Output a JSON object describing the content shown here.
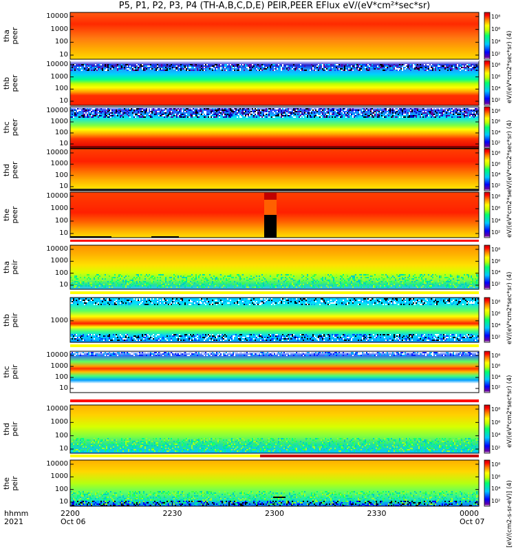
{
  "chart_data": {
    "type": "heatmap",
    "title": "P5, P1, P2, P3, P4 (TH-A,B,C,D,E) PEIR,PEER EFlux eV/(eV*cm²*sec*sr)",
    "x_axis": {
      "row_labels": [
        "hhmm",
        "2021"
      ],
      "ticks": [
        {
          "label": "2200",
          "date": "Oct 06"
        },
        {
          "label": "2230",
          "date": ""
        },
        {
          "label": "2300",
          "date": ""
        },
        {
          "label": "2330",
          "date": ""
        },
        {
          "label": "0000",
          "date": "Oct 07"
        }
      ]
    },
    "colorbar_ticks": [
      "10⁸",
      "10⁶",
      "10⁴",
      "10²"
    ],
    "colorbar_units": [
      "eV/(eV*cm2*sec*sr) (4)",
      "eV/(eV*cm2*sec*sr) (4)",
      "eV/(eV*cm2*sec*sr) (4)",
      "eV/(eV*cm2*sec*sr) (4)",
      "eV/(eV*cm2*sec*sr) (4)",
      "[eV/(cm2-s-sr-eV)] (4)"
    ],
    "panels": [
      {
        "probe": "tha",
        "instrument": "peer",
        "yticks": [
          "10000",
          "1000",
          "100",
          "10"
        ],
        "ylog": true
      },
      {
        "probe": "thb",
        "instrument": "peer",
        "yticks": [
          "10000",
          "1000",
          "100",
          "10"
        ],
        "ylog": true
      },
      {
        "probe": "thc",
        "instrument": "peer",
        "yticks": [
          "10000",
          "1000",
          "100",
          "10"
        ],
        "ylog": true
      },
      {
        "probe": "thd",
        "instrument": "peer",
        "yticks": [
          "10000",
          "1000",
          "100",
          "10"
        ],
        "ylog": true
      },
      {
        "probe": "the",
        "instrument": "peer",
        "yticks": [
          "10000",
          "1000",
          "100",
          "10"
        ],
        "ylog": true
      },
      {
        "probe": "tha",
        "instrument": "peir",
        "yticks": [
          "10000",
          "1000",
          "100",
          "10"
        ],
        "ylog": true
      },
      {
        "probe": "thb",
        "instrument": "peir",
        "yticks": [
          "1000"
        ],
        "ylog": true
      },
      {
        "probe": "thc",
        "instrument": "peir",
        "yticks": [
          "10000",
          "1000",
          "100",
          "10"
        ],
        "ylog": true
      },
      {
        "probe": "thd",
        "instrument": "peir",
        "yticks": [
          "10000",
          "1000",
          "100",
          "10"
        ],
        "ylog": true
      },
      {
        "probe": "the",
        "instrument": "peir",
        "yticks": [
          "10000",
          "1000",
          "100",
          "10"
        ],
        "ylog": true
      }
    ]
  },
  "colors": {
    "scale": [
      "#ffffff",
      "#5a0070",
      "#0000ff",
      "#00c8ff",
      "#00ff80",
      "#b4ff00",
      "#ffff00",
      "#ffa000",
      "#ff3000",
      "#d80000"
    ]
  }
}
